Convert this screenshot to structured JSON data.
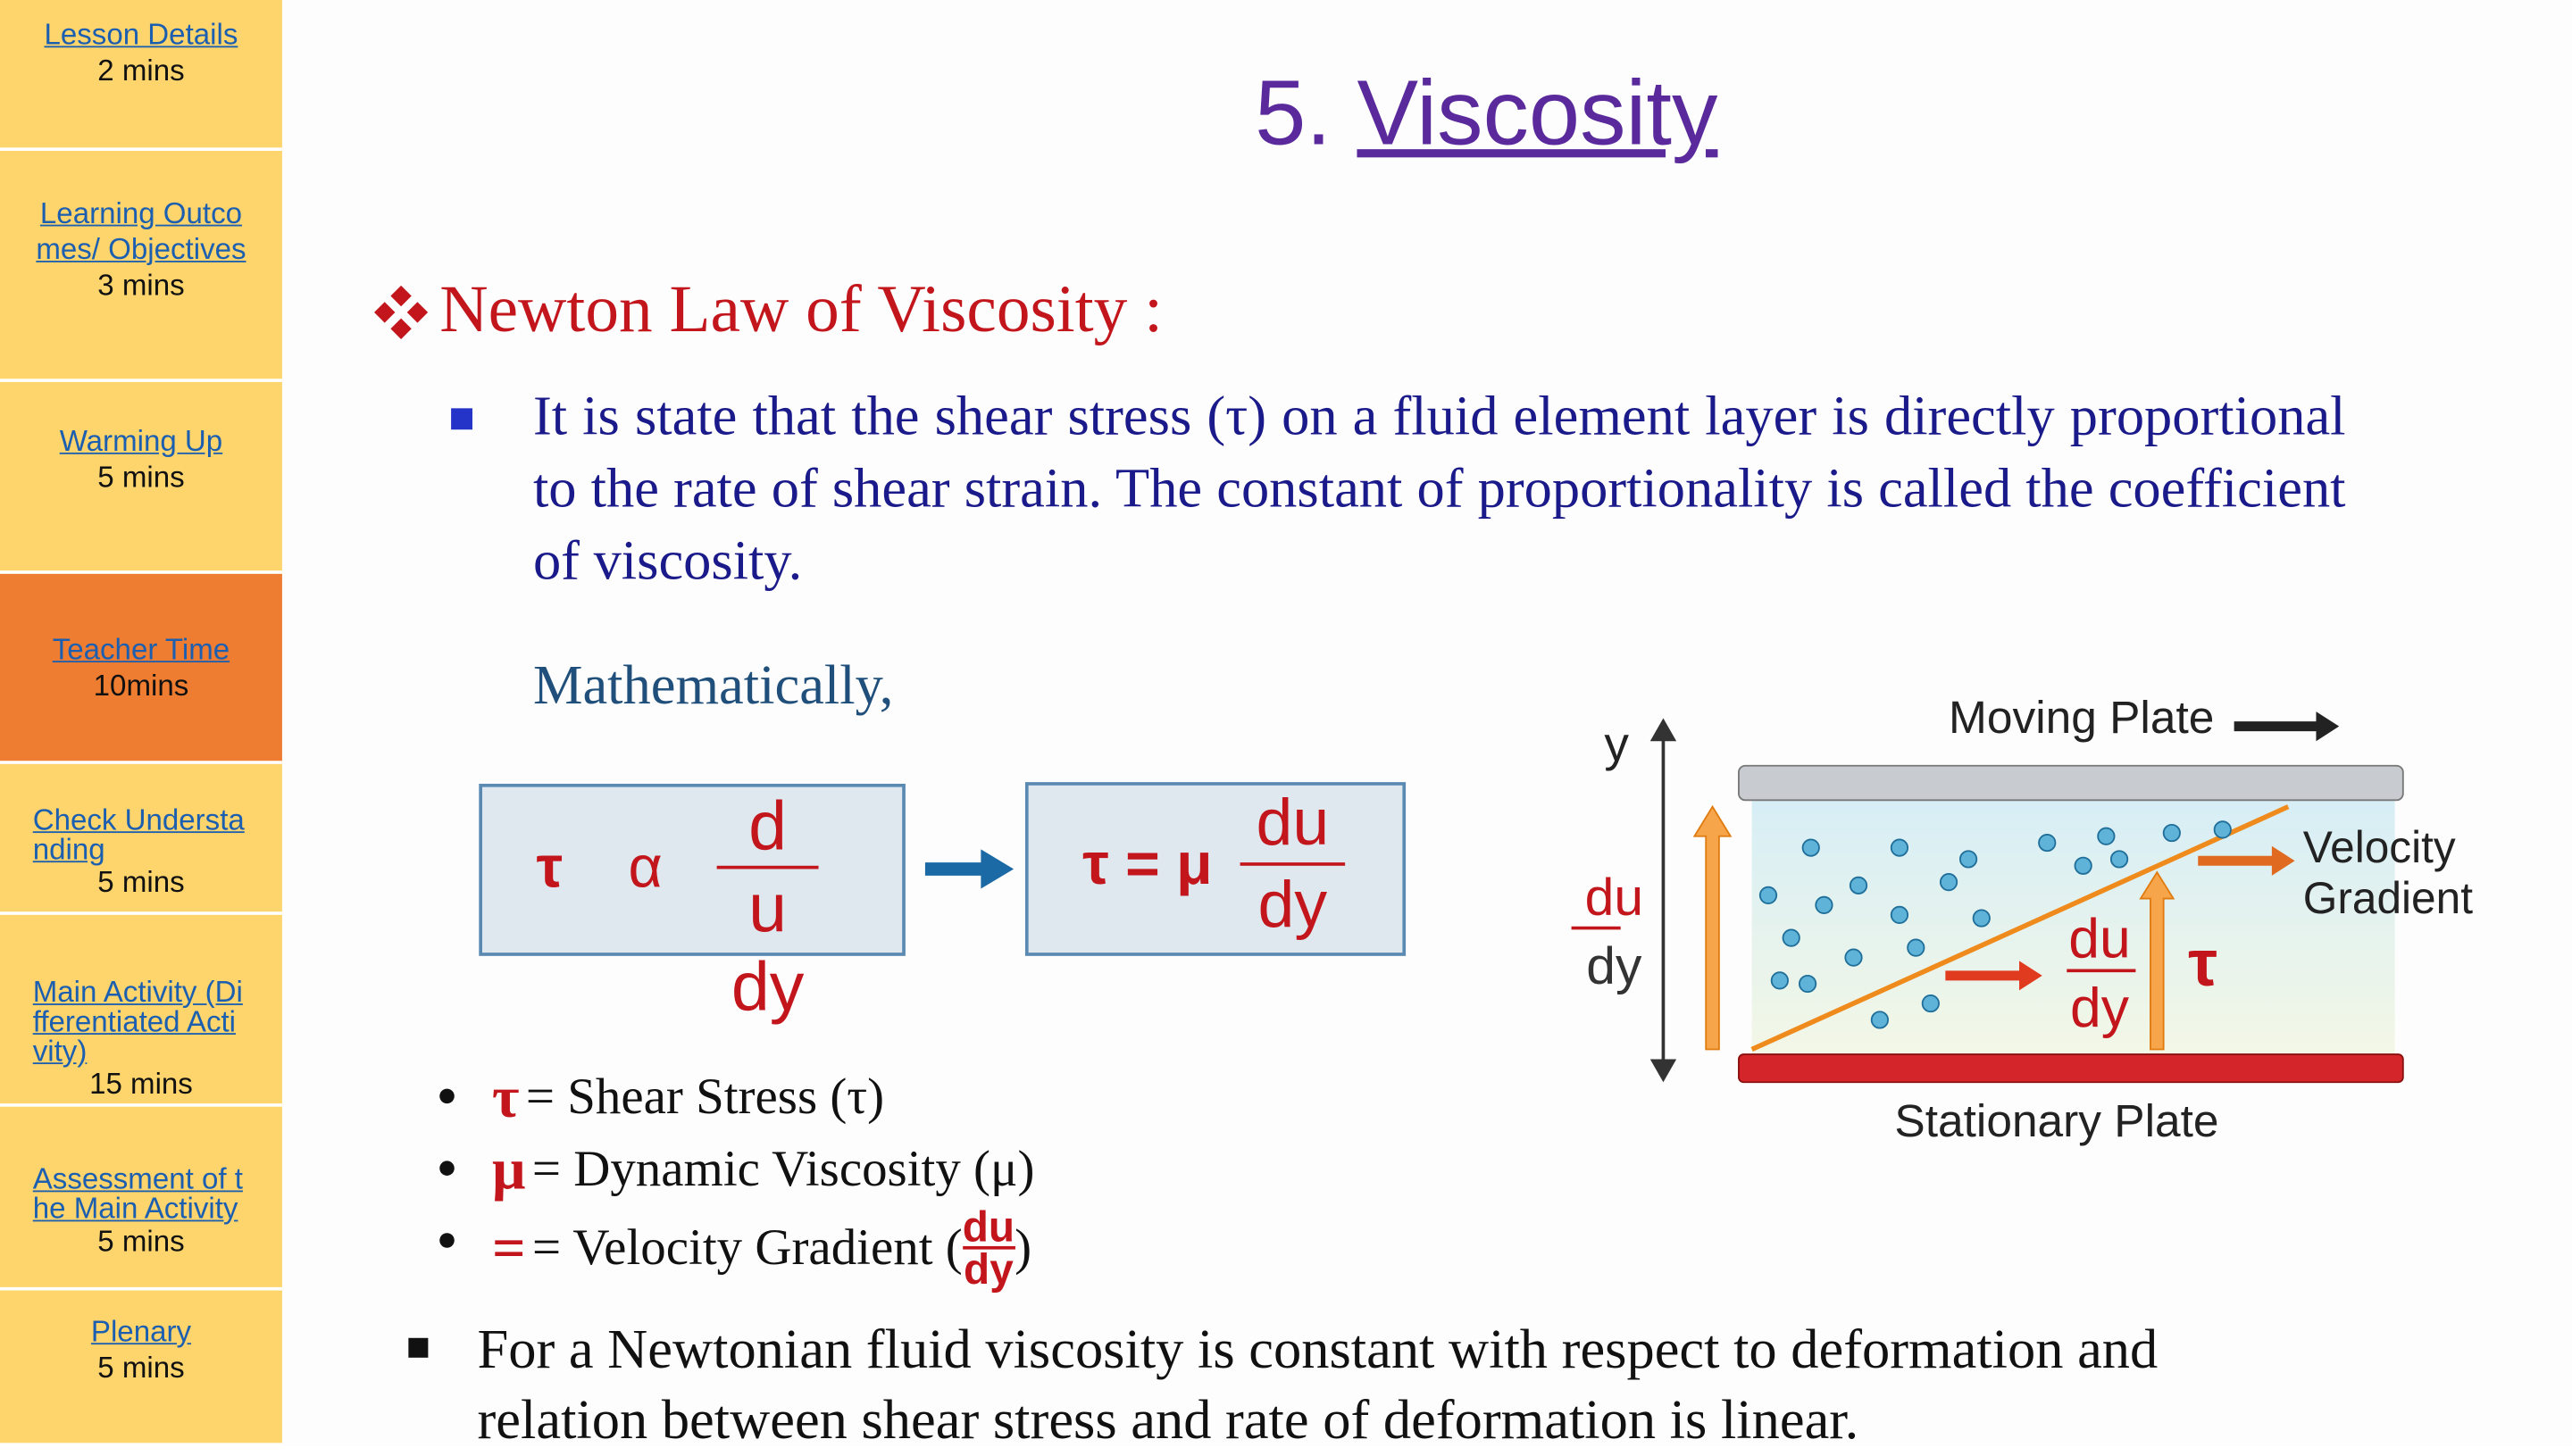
{
  "sidebar": [
    {
      "link": "Lesson Details",
      "duration": "2 mins"
    },
    {
      "link": "Learning Outcomes/ Objectives",
      "duration": "3 mins"
    },
    {
      "link": "Warming Up",
      "duration": "5 mins"
    },
    {
      "link": "Teacher Time",
      "duration": "10mins"
    },
    {
      "link": "Check Understanding",
      "duration": "5 mins"
    },
    {
      "link": "Main Activity (Differentiated Activity)",
      "duration": "15 mins"
    },
    {
      "link": "Assessment of the Main Activity",
      "duration": "5 mins"
    },
    {
      "link": "Plenary",
      "duration": "5 mins"
    }
  ],
  "slide": {
    "title_number": "5.",
    "title": "Viscosity",
    "heading": "Newton Law of Viscosity :",
    "statement": "It is state that the shear stress (τ) on a fluid element layer is directly proportional to the rate of shear strain. The constant of proportionality is called the coefficient of viscosity.",
    "mathematically": "Mathematically,",
    "formula1": {
      "tau": "τ",
      "alpha": "α",
      "numerator": "d",
      "denominator": "u",
      "below": "dy"
    },
    "formula2": {
      "lhs": "τ = μ",
      "numerator": "du",
      "denominator": "dy"
    },
    "legend": [
      {
        "symbol": "τ",
        "text": "= Shear Stress (τ)"
      },
      {
        "symbol": "μ",
        "text": "= Dynamic Viscosity (μ)"
      },
      {
        "symbol": "=",
        "text": "= Velocity Gradient (",
        "numerator": "du",
        "denominator": "dy",
        "close": ")"
      }
    ],
    "diagram": {
      "axis": "y",
      "left_numerator": "du",
      "left_denominator": "dy",
      "inner_numerator": "du",
      "inner_denominator": "dy",
      "tau": "τ",
      "moving_plate": "Moving Plate",
      "velocity_gradient": "Velocity Gradient",
      "stationary_plate": "Stationary Plate"
    },
    "conclusion": "For a Newtonian fluid viscosity is constant with respect to deformation and relation between shear stress and rate of deformation is linear."
  }
}
